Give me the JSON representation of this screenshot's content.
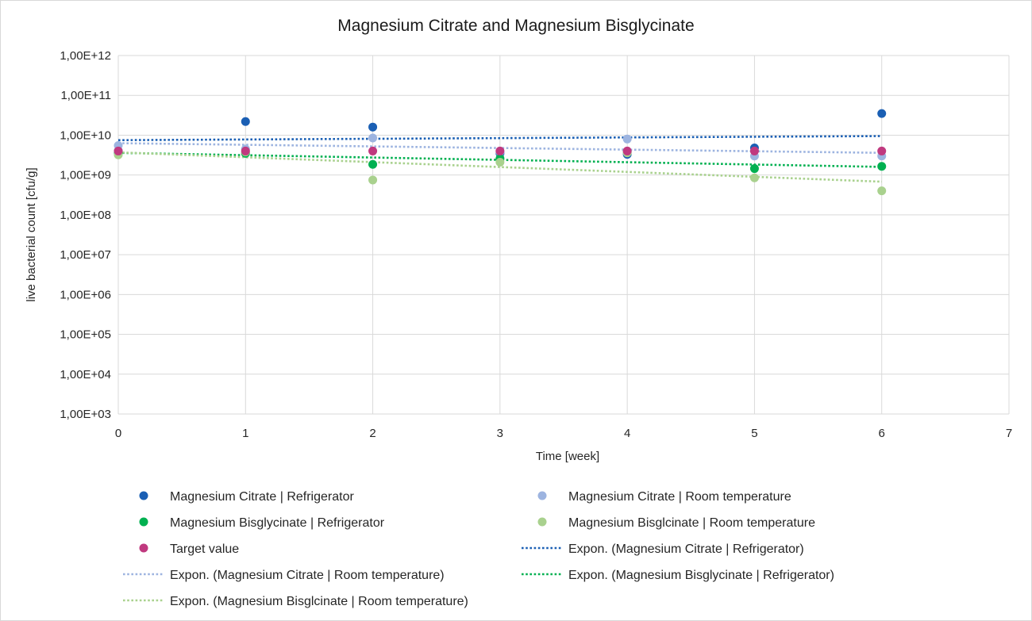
{
  "chart_data": {
    "type": "scatter",
    "title": "Magnesium Citrate and Magnesium Bisglycinate",
    "xlabel": "Time [week]",
    "ylabel": "live bacterial count [cfu/g]",
    "xlim": [
      0,
      7
    ],
    "ylim": [
      1000,
      1000000000000
    ],
    "y_scale": "log",
    "grid": true,
    "legend_position": "bottom",
    "x_ticks": [
      "0",
      "1",
      "2",
      "3",
      "4",
      "5",
      "6",
      "7"
    ],
    "y_ticks": [
      "1,00E+03",
      "1,00E+04",
      "1,00E+05",
      "1,00E+06",
      "1,00E+07",
      "1,00E+08",
      "1,00E+09",
      "1,00E+10",
      "1,00E+11",
      "1,00E+12"
    ],
    "series": [
      {
        "name": "Magnesium Citrate | Refrigerator",
        "color": "#1a5fb4",
        "x": [
          0,
          1,
          2,
          3,
          4,
          5,
          6
        ],
        "y": [
          4000000000,
          22000000000,
          16000000000,
          3500000000,
          3300000000,
          4800000000,
          35000000000
        ]
      },
      {
        "name": "Magnesium Citrate | Room temperature",
        "color": "#9db4e0",
        "x": [
          0,
          1,
          2,
          3,
          4,
          5,
          6
        ],
        "y": [
          5500000000,
          4500000000,
          8500000000,
          3800000000,
          8000000000,
          3000000000,
          3000000000
        ]
      },
      {
        "name": "Magnesium Bisglycinate | Refrigerator",
        "color": "#00b050",
        "x": [
          0,
          1,
          2,
          3,
          4,
          5,
          6
        ],
        "y": [
          3500000000,
          3500000000,
          1850000000,
          2600000000,
          3800000000,
          1450000000,
          1650000000
        ]
      },
      {
        "name": "Magnesium Bisglcinate | Room temperature",
        "color": "#a9d18e",
        "x": [
          0,
          1,
          2,
          3,
          4,
          5,
          6
        ],
        "y": [
          3200000000,
          3800000000,
          750000000,
          2100000000,
          3600000000,
          850000000,
          400000000
        ]
      },
      {
        "name": "Target value",
        "color": "#c0397f",
        "x": [
          0,
          1,
          2,
          3,
          4,
          5,
          6
        ],
        "y": [
          4000000000,
          4000000000,
          4000000000,
          4000000000,
          4000000000,
          4000000000,
          4000000000
        ]
      }
    ],
    "trendlines": [
      {
        "name": "Expon. (Magnesium Citrate | Refrigerator)",
        "type": "exponential",
        "color": "#1a5fb4",
        "x": [
          0,
          6
        ],
        "y": [
          7500000000,
          9500000000
        ]
      },
      {
        "name": "Expon. (Magnesium Citrate | Room temperature)",
        "type": "exponential",
        "color": "#9db4e0",
        "x": [
          0,
          6
        ],
        "y": [
          6300000000,
          3600000000
        ]
      },
      {
        "name": "Expon. (Magnesium Bisglycinate | Refrigerator)",
        "type": "exponential",
        "color": "#00b050",
        "x": [
          0,
          6
        ],
        "y": [
          3600000000,
          1600000000
        ]
      },
      {
        "name": "Expon. (Magnesium Bisglcinate | Room temperature)",
        "type": "exponential",
        "color": "#a9d18e",
        "x": [
          0,
          6
        ],
        "y": [
          3700000000,
          680000000
        ]
      }
    ],
    "legend": [
      {
        "label": "Magnesium Citrate | Refrigerator",
        "kind": "marker",
        "color": "#1a5fb4"
      },
      {
        "label": "Magnesium Citrate | Room temperature",
        "kind": "marker",
        "color": "#9db4e0"
      },
      {
        "label": "Magnesium Bisglycinate | Refrigerator",
        "kind": "marker",
        "color": "#00b050"
      },
      {
        "label": "Magnesium Bisglcinate | Room temperature",
        "kind": "marker",
        "color": "#a9d18e"
      },
      {
        "label": "Target value",
        "kind": "marker",
        "color": "#c0397f"
      },
      {
        "label": "Expon. (Magnesium Citrate | Refrigerator)",
        "kind": "dotted-line",
        "color": "#1a5fb4"
      },
      {
        "label": "Expon. (Magnesium Citrate | Room temperature)",
        "kind": "dotted-line",
        "color": "#9db4e0"
      },
      {
        "label": "Expon. (Magnesium Bisglycinate | Refrigerator)",
        "kind": "dotted-line",
        "color": "#00b050"
      },
      {
        "label": "Expon. (Magnesium Bisglcinate | Room temperature)",
        "kind": "dotted-line",
        "color": "#a9d18e"
      }
    ]
  }
}
